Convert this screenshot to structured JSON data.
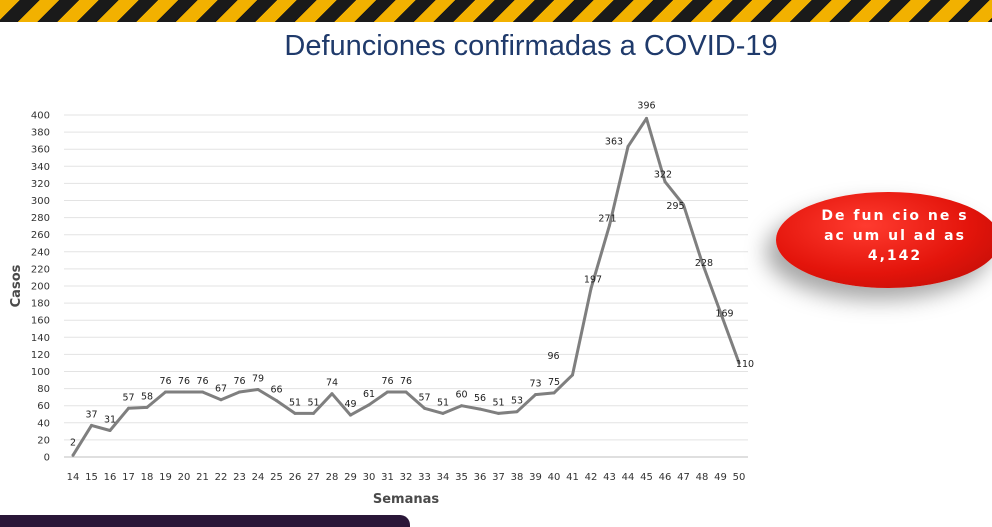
{
  "page": {
    "title": "Defunciones confirmadas a COVID-19"
  },
  "badge": {
    "line1": "De fun cio ne s",
    "line2": "ac um ul ad as",
    "value": "4,142",
    "color": "#e3140b"
  },
  "chart_data": {
    "type": "line",
    "title": "Defunciones confirmadas a COVID-19",
    "xlabel": "Semanas",
    "ylabel": "Casos",
    "ylim": [
      0,
      400
    ],
    "yticks": [
      0,
      20,
      40,
      60,
      80,
      100,
      120,
      140,
      160,
      180,
      200,
      220,
      240,
      260,
      280,
      300,
      320,
      340,
      360,
      380,
      400
    ],
    "grid": true,
    "line_color": "#7f7f7f",
    "x": [
      "14",
      "15",
      "16",
      "17",
      "18",
      "19",
      "20",
      "21",
      "22",
      "23",
      "24",
      "25",
      "26",
      "27",
      "28",
      "29",
      "30",
      "31",
      "32",
      "33",
      "34",
      "35",
      "36",
      "37",
      "38",
      "39",
      "40",
      "41",
      "42",
      "43",
      "44",
      "45",
      "46",
      "47",
      "48",
      "49",
      "50"
    ],
    "series": [
      {
        "values": [
          2,
          37,
          31,
          57,
          58,
          76,
          76,
          76,
          67,
          76,
          79,
          66,
          51,
          51,
          74,
          49,
          61,
          76,
          76,
          57,
          51,
          60,
          56,
          51,
          53,
          73,
          75,
          96,
          197,
          271,
          363,
          396,
          322,
          295,
          228,
          169,
          110
        ]
      }
    ]
  }
}
